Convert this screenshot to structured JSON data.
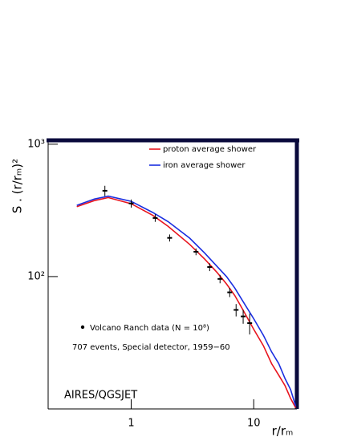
{
  "chart_data": {
    "type": "line",
    "ylabel": "S . (r/rₘ)²",
    "xlabel": "r/rₘ",
    "log_x": true,
    "log_y": true,
    "xlim": [
      0.21,
      22.5
    ],
    "ylim": [
      10,
      1070
    ],
    "xticks": [
      1,
      10
    ],
    "yticks": [
      {
        "value": 100,
        "label": "10²"
      },
      {
        "value": 1000,
        "label": "10³"
      }
    ],
    "series": [
      {
        "name": "proton average shower",
        "color": "#e8141e",
        "x": [
          0.36,
          0.5,
          0.65,
          1.0,
          1.5,
          2,
          3,
          4,
          5,
          6,
          7,
          8,
          10,
          12,
          14,
          16,
          18,
          20,
          22
        ],
        "values": [
          337,
          375,
          395,
          355,
          290,
          240,
          175,
          135,
          108,
          88,
          72,
          58,
          40,
          30,
          22,
          18,
          15,
          12,
          10.2
        ]
      },
      {
        "name": "iron average shower",
        "color": "#1a2ee0",
        "x": [
          0.36,
          0.5,
          0.65,
          1.0,
          1.5,
          2,
          3,
          4,
          5,
          6,
          7,
          8,
          10,
          12,
          14,
          16,
          18,
          20,
          22
        ],
        "values": [
          345,
          385,
          405,
          370,
          305,
          260,
          195,
          150,
          120,
          100,
          82,
          67,
          48,
          36,
          27,
          22,
          17,
          14,
          10.5
        ]
      },
      {
        "name": "Volcano Ranch data (N = 10⁸)",
        "color": "#000000",
        "style": "points",
        "x": [
          0.61,
          1.0,
          1.57,
          2.06,
          3.38,
          4.37,
          5.31,
          6.37,
          7.18,
          8.2,
          9.27
        ],
        "values": [
          445,
          357,
          277,
          196,
          154,
          118,
          96,
          76,
          56,
          50,
          44.5
        ],
        "errors": [
          40,
          25,
          18,
          12,
          9,
          8,
          7,
          6,
          6,
          6,
          8
        ]
      }
    ],
    "annotations": [
      "707 events, Special detector, 1959−60",
      "AIRES/QGSJET"
    ]
  }
}
